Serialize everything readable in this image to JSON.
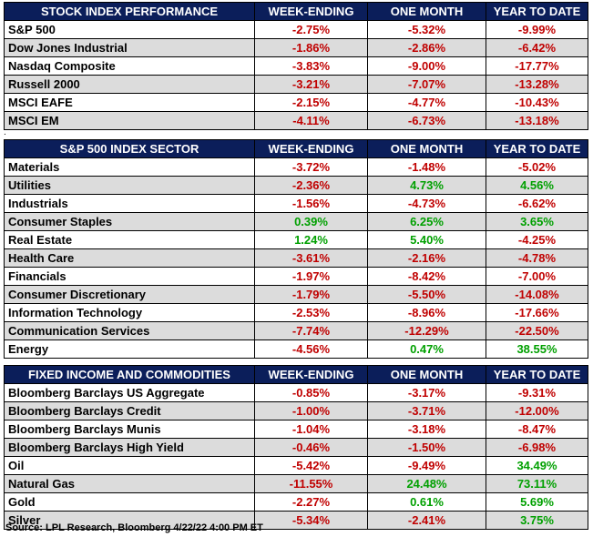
{
  "tables": [
    {
      "headers": [
        "STOCK INDEX PERFORMANCE",
        "WEEK-ENDING",
        "ONE MONTH",
        "YEAR TO DATE"
      ],
      "rows": [
        [
          "S&P 500",
          "-2.75%",
          "-5.32%",
          "-9.99%"
        ],
        [
          "Dow Jones Industrial",
          "-1.86%",
          "-2.86%",
          "-6.42%"
        ],
        [
          "Nasdaq Composite",
          "-3.83%",
          "-9.00%",
          "-17.77%"
        ],
        [
          "Russell 2000",
          "-3.21%",
          "-7.07%",
          "-13.28%"
        ],
        [
          "MSCI EAFE",
          "-2.15%",
          "-4.77%",
          "-10.43%"
        ],
        [
          "MSCI EM",
          "-4.11%",
          "-6.73%",
          "-13.18%"
        ]
      ]
    },
    {
      "headers": [
        "S&P 500 INDEX SECTOR",
        "WEEK-ENDING",
        "ONE MONTH",
        "YEAR TO DATE"
      ],
      "rows": [
        [
          "Materials",
          "-3.72%",
          "-1.48%",
          "-5.02%"
        ],
        [
          "Utilities",
          "-2.36%",
          "4.73%",
          "4.56%"
        ],
        [
          "Industrials",
          "-1.56%",
          "-4.73%",
          "-6.62%"
        ],
        [
          "Consumer Staples",
          "0.39%",
          "6.25%",
          "3.65%"
        ],
        [
          "Real Estate",
          "1.24%",
          "5.40%",
          "-4.25%"
        ],
        [
          "Health Care",
          "-3.61%",
          "-2.16%",
          "-4.78%"
        ],
        [
          "Financials",
          "-1.97%",
          "-8.42%",
          "-7.00%"
        ],
        [
          "Consumer Discretionary",
          "-1.79%",
          "-5.50%",
          "-14.08%"
        ],
        [
          "Information Technology",
          "-2.53%",
          "-8.96%",
          "-17.66%"
        ],
        [
          "Communication Services",
          "-7.74%",
          "-12.29%",
          "-22.50%"
        ],
        [
          "Energy",
          "-4.56%",
          "0.47%",
          "38.55%"
        ]
      ]
    },
    {
      "headers": [
        "FIXED INCOME AND COMMODITIES",
        "WEEK-ENDING",
        "ONE MONTH",
        "YEAR TO DATE"
      ],
      "rows": [
        [
          "Bloomberg Barclays US Aggregate",
          "-0.85%",
          "-3.17%",
          "-9.31%"
        ],
        [
          "Bloomberg Barclays Credit",
          "-1.00%",
          "-3.71%",
          "-12.00%"
        ],
        [
          "Bloomberg Barclays Munis",
          "-1.04%",
          "-3.18%",
          "-8.47%"
        ],
        [
          "Bloomberg Barclays High Yield",
          "-0.46%",
          "-1.50%",
          "-6.98%"
        ],
        [
          "Oil",
          "-5.42%",
          "-9.49%",
          "34.49%"
        ],
        [
          "Natural Gas",
          "-11.55%",
          "24.48%",
          "73.11%"
        ],
        [
          "Gold",
          "-2.27%",
          "0.61%",
          "5.69%"
        ],
        [
          "Silver",
          "-5.34%",
          "-2.41%",
          "3.75%"
        ]
      ]
    }
  ],
  "separator": ".",
  "source": "Source: LPL Research, Bloomberg 4/22/22 4:00 PM ET",
  "colors": {
    "header_bg": "#0b1e5a",
    "negative": "#c00000",
    "positive": "#00a000",
    "alt_row": "#dcdcdc"
  }
}
